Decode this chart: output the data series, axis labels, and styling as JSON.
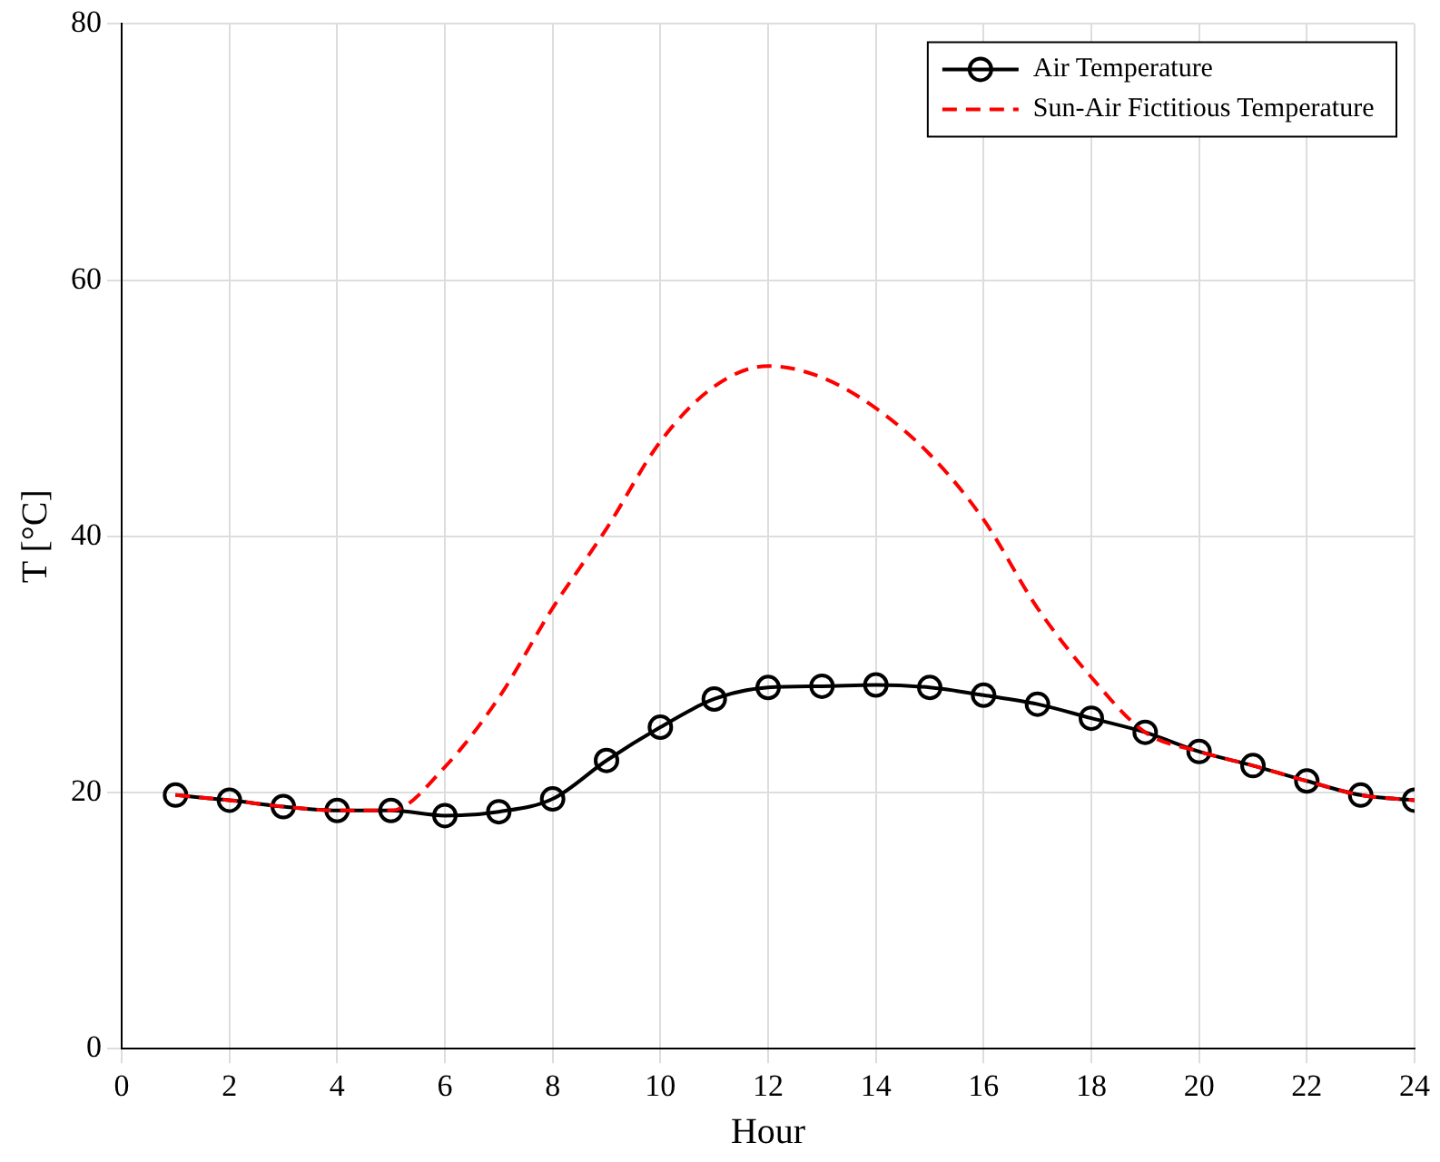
{
  "chart_data": {
    "type": "line",
    "xlabel": "Hour",
    "ylabel": "T [°C]",
    "x": [
      1,
      2,
      3,
      4,
      5,
      6,
      7,
      8,
      9,
      10,
      11,
      12,
      13,
      14,
      15,
      16,
      17,
      18,
      19,
      20,
      21,
      22,
      23,
      24
    ],
    "series": [
      {
        "name": "Air Temperature",
        "color": "#000000",
        "marker": "circle",
        "line_style": "solid",
        "values": [
          19.8,
          19.4,
          18.9,
          18.6,
          18.6,
          18.2,
          18.5,
          19.5,
          22.5,
          25.1,
          27.3,
          28.2,
          28.3,
          28.4,
          28.2,
          27.6,
          26.9,
          25.8,
          24.7,
          23.2,
          22.1,
          20.9,
          19.8,
          19.4
        ]
      },
      {
        "name": "Sun-Air Fictitious Temperature",
        "color": "#ff0000",
        "marker": "none",
        "line_style": "dashed",
        "values": [
          19.8,
          19.4,
          18.9,
          18.6,
          18.6,
          22,
          27.4,
          34.4,
          40.6,
          47.4,
          51.7,
          53.3,
          52.4,
          50,
          46.4,
          41.3,
          34.4,
          29,
          24.7,
          23.2,
          22.1,
          20.9,
          19.8,
          19.4
        ]
      }
    ],
    "xlim": [
      0,
      24
    ],
    "xticks": [
      0,
      2,
      4,
      6,
      8,
      10,
      12,
      14,
      16,
      18,
      20,
      22,
      24
    ],
    "ylim": [
      0,
      80
    ],
    "yticks": [
      0,
      20,
      40,
      60,
      80
    ],
    "grid": true,
    "legend": "top right"
  }
}
